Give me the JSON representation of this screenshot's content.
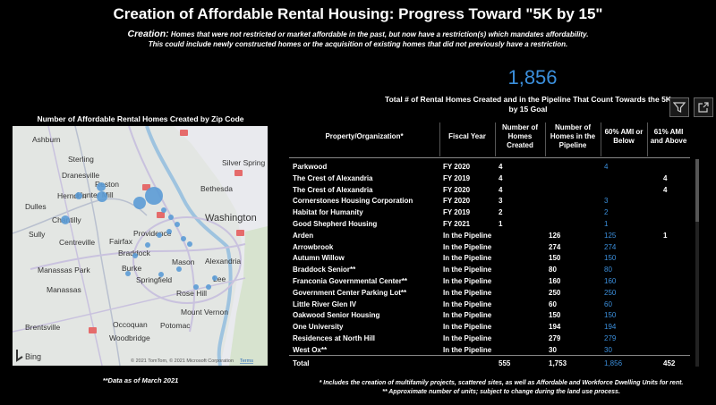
{
  "title": "Creation of Affordable Rental Housing: Progress Toward \"5K by 15\"",
  "creation": {
    "lead": "Creation:",
    "line1": "Homes that were not restricted or market affordable in the past, but now have a restriction(s) which mandates affordability.",
    "line2": "This could include newly constructed homes or the acquisition of existing homes that did not previously have a restriction."
  },
  "kpi": {
    "value": "1,856",
    "label": "Total # of Rental Homes Created and in the Pipeline That Count Towards the 5K by 15 Goal"
  },
  "toolbar": {
    "filter_icon": "filter-icon",
    "expand_icon": "expand-icon"
  },
  "map": {
    "title": "Number of Affordable Rental Homes Created by Zip Code",
    "attribution": "© 2021 TomTom, © 2021 Microsoft Corporation",
    "terms": "Terms",
    "logo": "Bing",
    "places": [
      "Ashburn",
      "Sterling",
      "Dranesville",
      "Herndon",
      "Reston",
      "Hunter Mill",
      "Dulles",
      "Chantilly",
      "Sully",
      "Centreville",
      "Fairfax",
      "Providence",
      "Braddock",
      "Burke",
      "Springfield",
      "Mason",
      "Alexandria",
      "Lee",
      "Rose Hill",
      "Mount Vernon",
      "Manassas Park",
      "Manassas",
      "Occoquan",
      "Woodbridge",
      "Brentsville",
      "Potomac",
      "Silver Spring",
      "Bethesda",
      "Washington"
    ]
  },
  "data_note": "**Data as of March 2021",
  "table": {
    "headers": {
      "property": "Property/Organization*",
      "fiscal_year": "Fiscal Year",
      "homes_created": "Number of Homes Created",
      "homes_pipeline": "Number of Homes in the Pipeline",
      "ami60": "60% AMI or Below",
      "ami61": "61% AMI and Above"
    },
    "rows": [
      {
        "name": "Parkwood",
        "fy": "FY 2020",
        "created": "4",
        "pipeline": "",
        "ami60": "4",
        "ami61": ""
      },
      {
        "name": "The Crest of Alexandria",
        "fy": "FY 2019",
        "created": "4",
        "pipeline": "",
        "ami60": "",
        "ami61": "4"
      },
      {
        "name": "The Crest of Alexandria",
        "fy": "FY 2020",
        "created": "4",
        "pipeline": "",
        "ami60": "",
        "ami61": "4"
      },
      {
        "name": "Cornerstones Housing Corporation",
        "fy": "FY 2020",
        "created": "3",
        "pipeline": "",
        "ami60": "3",
        "ami61": ""
      },
      {
        "name": "Habitat for Humanity",
        "fy": "FY 2019",
        "created": "2",
        "pipeline": "",
        "ami60": "2",
        "ami61": ""
      },
      {
        "name": "Good Shepherd Housing",
        "fy": "FY 2021",
        "created": "1",
        "pipeline": "",
        "ami60": "1",
        "ami61": ""
      },
      {
        "name": "Arden",
        "fy": "In the Pipeline",
        "created": "",
        "pipeline": "126",
        "ami60": "125",
        "ami61": "1"
      },
      {
        "name": "Arrowbrook",
        "fy": "In the Pipeline",
        "created": "",
        "pipeline": "274",
        "ami60": "274",
        "ami61": ""
      },
      {
        "name": "Autumn Willow",
        "fy": "In the Pipeline",
        "created": "",
        "pipeline": "150",
        "ami60": "150",
        "ami61": ""
      },
      {
        "name": "Braddock Senior**",
        "fy": "In the Pipeline",
        "created": "",
        "pipeline": "80",
        "ami60": "80",
        "ami61": ""
      },
      {
        "name": "Franconia Governmental Center**",
        "fy": "In the Pipeline",
        "created": "",
        "pipeline": "160",
        "ami60": "160",
        "ami61": ""
      },
      {
        "name": "Government Center Parking Lot**",
        "fy": "In the Pipeline",
        "created": "",
        "pipeline": "250",
        "ami60": "250",
        "ami61": ""
      },
      {
        "name": "Little River Glen IV",
        "fy": "In the Pipeline",
        "created": "",
        "pipeline": "60",
        "ami60": "60",
        "ami61": ""
      },
      {
        "name": "Oakwood Senior Housing",
        "fy": "In the Pipeline",
        "created": "",
        "pipeline": "150",
        "ami60": "150",
        "ami61": ""
      },
      {
        "name": "One University",
        "fy": "In the Pipeline",
        "created": "",
        "pipeline": "194",
        "ami60": "194",
        "ami61": ""
      },
      {
        "name": "Residences at North Hill",
        "fy": "In the Pipeline",
        "created": "",
        "pipeline": "279",
        "ami60": "279",
        "ami61": ""
      },
      {
        "name": "West Ox**",
        "fy": "In the Pipeline",
        "created": "",
        "pipeline": "30",
        "ami60": "30",
        "ami61": ""
      }
    ],
    "total": {
      "name": "Total",
      "created": "555",
      "pipeline": "1,753",
      "ami60": "1,856",
      "ami61": "452"
    }
  },
  "notes": {
    "line1": "* Includes the creation of multifamily projects, scattered sites, as well as Affordable and Workforce Dwelling Units for rent.",
    "line2": "** Approximate number of units; subject to change during the land use process."
  },
  "colors": {
    "accent": "#3b8fdc",
    "background": "#000000",
    "bubble": "#5b9bd5"
  }
}
